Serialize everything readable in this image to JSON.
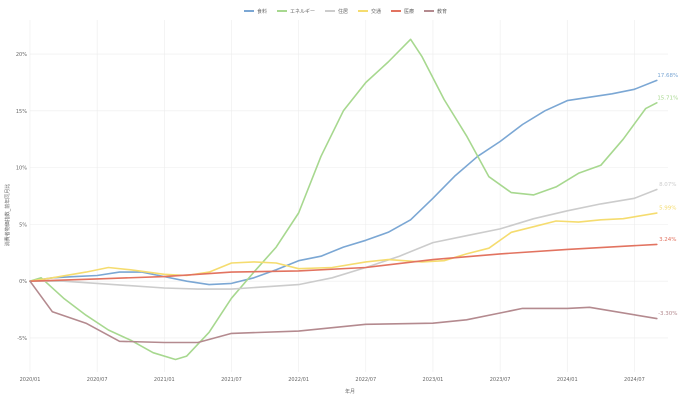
{
  "chart_data": {
    "type": "line",
    "title": "",
    "xlabel": "年月",
    "ylabel": "消費者物価指数_前年同月比",
    "xlim": [
      "2020-01",
      "2024-10"
    ],
    "ylim": [
      -8,
      23
    ],
    "x_ticks": [
      "2020/01",
      "2020/07",
      "2021/01",
      "2021/07",
      "2022/01",
      "2022/07",
      "2023/01",
      "2023/07",
      "2024/01",
      "2024/07"
    ],
    "y_ticks": [
      {
        "value": -5,
        "label": "-5%"
      },
      {
        "value": 0,
        "label": "0%"
      },
      {
        "value": 5,
        "label": "5%"
      },
      {
        "value": 10,
        "label": "10%"
      },
      {
        "value": 15,
        "label": "15%"
      },
      {
        "value": 20,
        "label": "20%"
      }
    ],
    "grid": true,
    "legend_position": "top-center",
    "series": [
      {
        "name": "食料",
        "color": "#7ba7d4",
        "end_label": "17.68%",
        "points": [
          [
            "2020-01",
            0
          ],
          [
            "2020-03",
            0.3
          ],
          [
            "2020-05",
            0.4
          ],
          [
            "2020-07",
            0.5
          ],
          [
            "2020-09",
            0.8
          ],
          [
            "2020-11",
            0.8
          ],
          [
            "2021-01",
            0.4
          ],
          [
            "2021-03",
            0
          ],
          [
            "2021-05",
            -0.3
          ],
          [
            "2021-07",
            -0.2
          ],
          [
            "2021-09",
            0.3
          ],
          [
            "2021-11",
            1
          ],
          [
            "2022-01",
            1.8
          ],
          [
            "2022-03",
            2.2
          ],
          [
            "2022-05",
            3
          ],
          [
            "2022-07",
            3.6
          ],
          [
            "2022-09",
            4.3
          ],
          [
            "2022-11",
            5.4
          ],
          [
            "2023-01",
            7.3
          ],
          [
            "2023-03",
            9.3
          ],
          [
            "2023-05",
            11
          ],
          [
            "2023-07",
            12.3
          ],
          [
            "2023-09",
            13.8
          ],
          [
            "2023-11",
            15
          ],
          [
            "2024-01",
            15.9
          ],
          [
            "2024-03",
            16.2
          ],
          [
            "2024-05",
            16.5
          ],
          [
            "2024-07",
            16.9
          ],
          [
            "2024-09",
            17.68
          ]
        ]
      },
      {
        "name": "エネルギー",
        "color": "#a7d88f",
        "end_label": "15.71%",
        "points": [
          [
            "2020-01",
            0
          ],
          [
            "2020-02",
            0.3
          ],
          [
            "2020-04",
            -1.5
          ],
          [
            "2020-06",
            -3
          ],
          [
            "2020-08",
            -4.3
          ],
          [
            "2020-10",
            -5.2
          ],
          [
            "2020-12",
            -6.3
          ],
          [
            "2021-02",
            -6.9
          ],
          [
            "2021-03",
            -6.6
          ],
          [
            "2021-05",
            -4.5
          ],
          [
            "2021-07",
            -1.5
          ],
          [
            "2021-09",
            0.8
          ],
          [
            "2021-11",
            3
          ],
          [
            "2022-01",
            6
          ],
          [
            "2022-03",
            11
          ],
          [
            "2022-05",
            15
          ],
          [
            "2022-07",
            17.5
          ],
          [
            "2022-09",
            19.3
          ],
          [
            "2022-11",
            21.3
          ],
          [
            "2022-12",
            19.8
          ],
          [
            "2023-02",
            16
          ],
          [
            "2023-04",
            12.8
          ],
          [
            "2023-06",
            9.2
          ],
          [
            "2023-08",
            7.8
          ],
          [
            "2023-10",
            7.6
          ],
          [
            "2023-12",
            8.3
          ],
          [
            "2024-02",
            9.5
          ],
          [
            "2024-04",
            10.2
          ],
          [
            "2024-06",
            12.5
          ],
          [
            "2024-08",
            15.2
          ],
          [
            "2024-09",
            15.71
          ]
        ]
      },
      {
        "name": "住居",
        "color": "#cccccc",
        "end_label": "8.07%",
        "points": [
          [
            "2020-01",
            0
          ],
          [
            "2020-04",
            0
          ],
          [
            "2020-07",
            -0.2
          ],
          [
            "2020-10",
            -0.4
          ],
          [
            "2021-01",
            -0.6
          ],
          [
            "2021-04",
            -0.7
          ],
          [
            "2021-07",
            -0.7
          ],
          [
            "2021-10",
            -0.5
          ],
          [
            "2022-01",
            -0.3
          ],
          [
            "2022-04",
            0.3
          ],
          [
            "2022-07",
            1.2
          ],
          [
            "2022-10",
            2.2
          ],
          [
            "2023-01",
            3.4
          ],
          [
            "2023-04",
            4
          ],
          [
            "2023-07",
            4.6
          ],
          [
            "2023-10",
            5.5
          ],
          [
            "2024-01",
            6.2
          ],
          [
            "2024-04",
            6.8
          ],
          [
            "2024-07",
            7.3
          ],
          [
            "2024-09",
            8.07
          ]
        ]
      },
      {
        "name": "交通",
        "color": "#f5dc6f",
        "end_label": "5.99%",
        "points": [
          [
            "2020-01",
            0
          ],
          [
            "2020-03",
            0.3
          ],
          [
            "2020-06",
            0.8
          ],
          [
            "2020-08",
            1.2
          ],
          [
            "2020-10",
            1
          ],
          [
            "2021-01",
            0.6
          ],
          [
            "2021-03",
            0.5
          ],
          [
            "2021-05",
            0.8
          ],
          [
            "2021-07",
            1.6
          ],
          [
            "2021-09",
            1.7
          ],
          [
            "2021-11",
            1.6
          ],
          [
            "2022-01",
            1.1
          ],
          [
            "2022-04",
            1.2
          ],
          [
            "2022-07",
            1.7
          ],
          [
            "2022-09",
            1.9
          ],
          [
            "2022-12",
            1.7
          ],
          [
            "2023-02",
            1.8
          ],
          [
            "2023-04",
            2.4
          ],
          [
            "2023-06",
            2.9
          ],
          [
            "2023-08",
            4.3
          ],
          [
            "2023-10",
            4.8
          ],
          [
            "2023-12",
            5.3
          ],
          [
            "2024-02",
            5.2
          ],
          [
            "2024-04",
            5.4
          ],
          [
            "2024-06",
            5.5
          ],
          [
            "2024-09",
            5.99
          ]
        ]
      },
      {
        "name": "医療",
        "color": "#e27360",
        "end_label": "3.24%",
        "points": [
          [
            "2020-01",
            0
          ],
          [
            "2020-07",
            0.2
          ],
          [
            "2021-01",
            0.4
          ],
          [
            "2021-07",
            0.8
          ],
          [
            "2022-01",
            0.9
          ],
          [
            "2022-07",
            1.2
          ],
          [
            "2023-01",
            1.9
          ],
          [
            "2023-07",
            2.4
          ],
          [
            "2024-01",
            2.8
          ],
          [
            "2024-09",
            3.24
          ]
        ]
      },
      {
        "name": "教育",
        "color": "#b48a8f",
        "end_label": "-3.30%",
        "points": [
          [
            "2020-01",
            0
          ],
          [
            "2020-03",
            -2.7
          ],
          [
            "2020-06",
            -3.7
          ],
          [
            "2020-09",
            -5.3
          ],
          [
            "2021-01",
            -5.4
          ],
          [
            "2021-04",
            -5.4
          ],
          [
            "2021-07",
            -4.6
          ],
          [
            "2022-01",
            -4.4
          ],
          [
            "2022-07",
            -3.8
          ],
          [
            "2023-01",
            -3.7
          ],
          [
            "2023-04",
            -3.4
          ],
          [
            "2023-07",
            -2.8
          ],
          [
            "2023-09",
            -2.4
          ],
          [
            "2024-01",
            -2.4
          ],
          [
            "2024-03",
            -2.3
          ],
          [
            "2024-09",
            -3.3
          ]
        ]
      }
    ]
  }
}
